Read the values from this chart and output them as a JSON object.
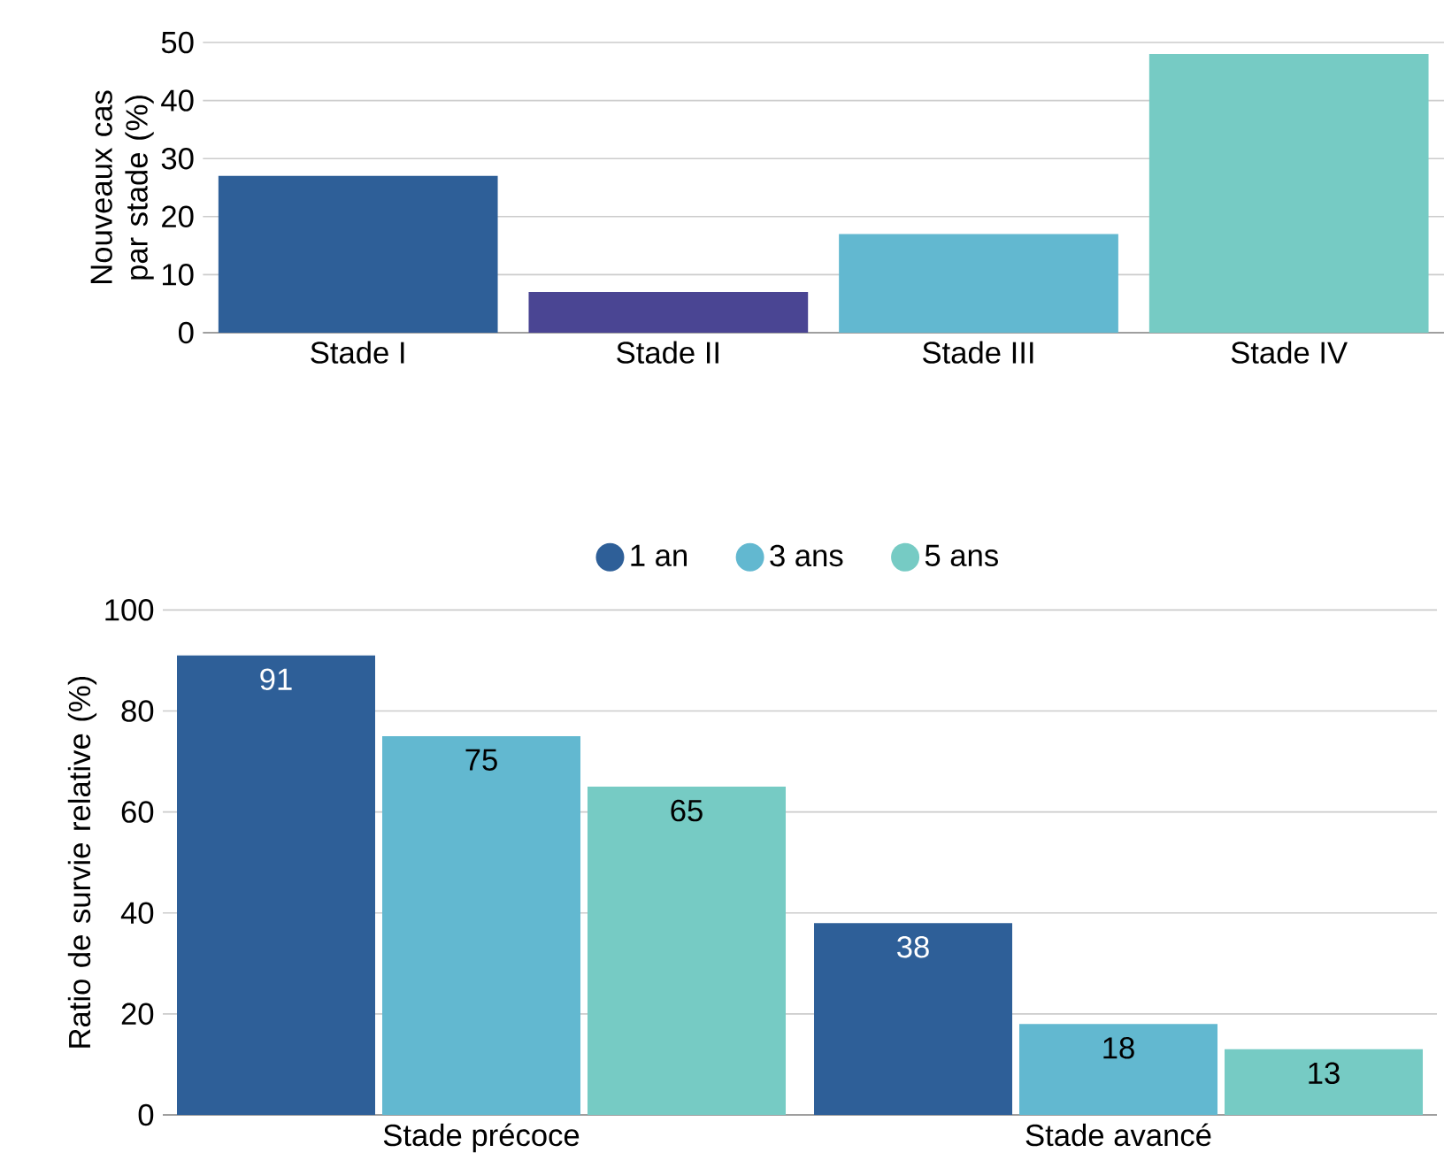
{
  "chart_data": [
    {
      "type": "bar",
      "ylabel": "Nouveaux cas par stade (%)",
      "categories": [
        "Stade I",
        "Stade II",
        "Stade III",
        "Stade IV"
      ],
      "values": [
        27,
        7,
        17,
        48
      ],
      "colors": [
        "#2e5f98",
        "#4a4593",
        "#62b8d0",
        "#76cbc4"
      ],
      "ylim": [
        0,
        50
      ],
      "yticks": [
        0,
        10,
        20,
        30,
        40,
        50
      ],
      "grid": "y"
    },
    {
      "type": "bar",
      "ylabel": "Ratio de survie relative (%)",
      "categories": [
        "Stade précoce",
        "Stade avancé"
      ],
      "series": [
        {
          "name": "1 an",
          "color": "#2e5f98",
          "values": [
            91,
            38
          ]
        },
        {
          "name": "3 ans",
          "color": "#62b8d0",
          "values": [
            75,
            18
          ]
        },
        {
          "name": "5 ans",
          "color": "#76cbc4",
          "values": [
            65,
            13
          ]
        }
      ],
      "ylim": [
        0,
        100
      ],
      "yticks": [
        0,
        20,
        40,
        60,
        80,
        100
      ],
      "grid": "y",
      "legend": "top",
      "data_labels": true
    }
  ]
}
